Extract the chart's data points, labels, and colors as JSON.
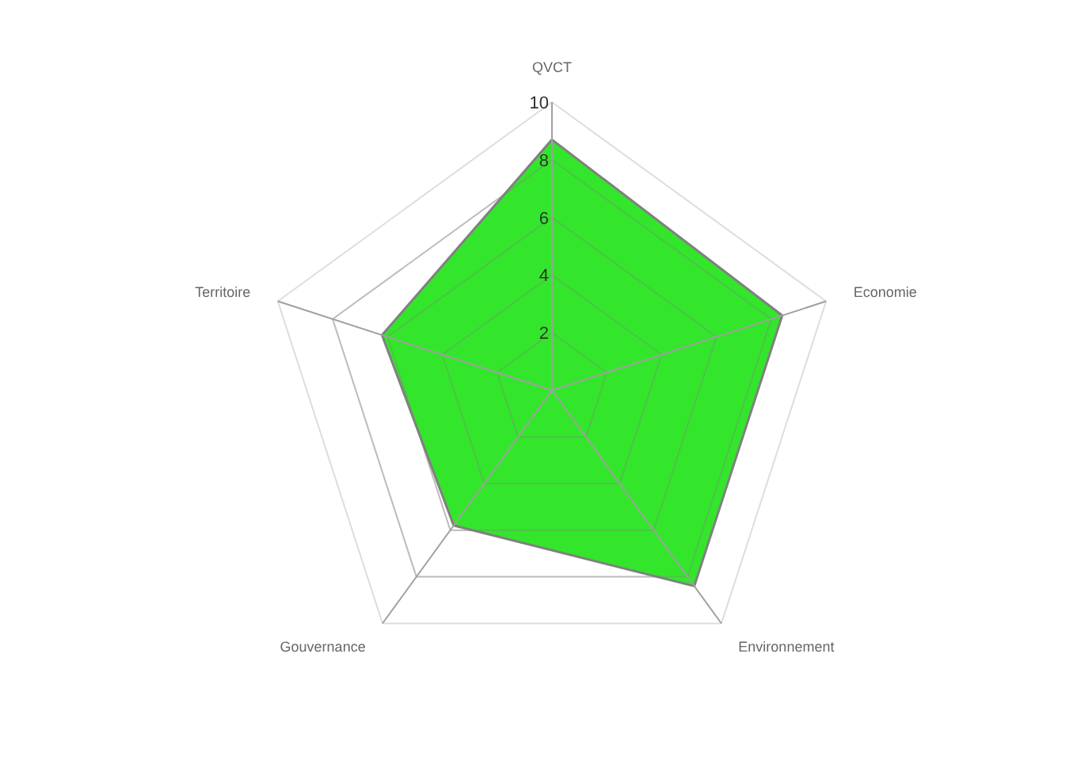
{
  "chart_data": {
    "type": "radar",
    "categories": [
      "QVCT",
      "Economie",
      "Environnement",
      "Gouvernance",
      "Territoire"
    ],
    "series": [
      {
        "color": "#33e62b",
        "values": [
          8.7,
          8.4,
          8.4,
          5.8,
          6.2
        ]
      }
    ],
    "ylim": [
      0,
      10
    ],
    "yticks": [
      2,
      4,
      6,
      8,
      10
    ],
    "grid": true
  }
}
